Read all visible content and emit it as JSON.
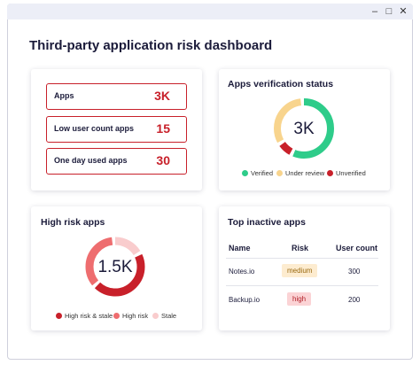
{
  "window": {
    "title": "Third-party application risk dashboard"
  },
  "summary": {
    "rows": [
      {
        "label": "Apps",
        "value": "3K"
      },
      {
        "label": "Low user count apps",
        "value": "15"
      },
      {
        "label": "One day used apps",
        "value": "30"
      }
    ]
  },
  "verification": {
    "title": "Apps verification status",
    "center": "3K",
    "legend": [
      "Verified",
      "Under review",
      "Unverified"
    ]
  },
  "high_risk": {
    "title": "High risk apps",
    "center": "1.5K",
    "legend": [
      "High risk & stale",
      "High risk",
      "Stale"
    ]
  },
  "inactive": {
    "title": "Top inactive apps",
    "columns": [
      "Name",
      "Risk",
      "User count"
    ],
    "rows": [
      [
        "Notes.io",
        "medium",
        300
      ],
      [
        "Backup.io",
        "high",
        200
      ]
    ]
  }
}
